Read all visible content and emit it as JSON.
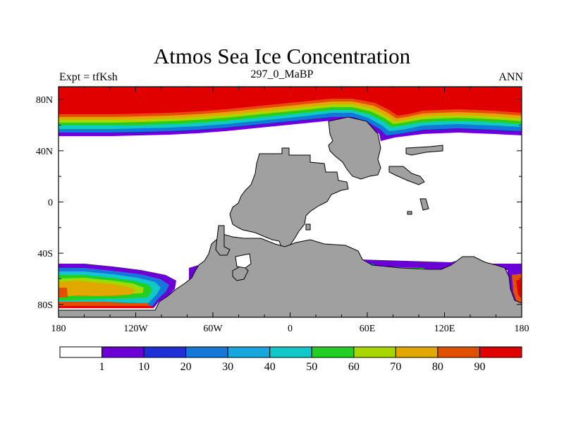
{
  "title": "Atmos Sea Ice Concentration",
  "left_label": "Expt = tfKsh",
  "center_label": "297_0_MaBP",
  "right_label": "ANN",
  "x_ticks": [
    {
      "value": -180,
      "label": "180"
    },
    {
      "value": -120,
      "label": "120W"
    },
    {
      "value": -60,
      "label": "60W"
    },
    {
      "value": 0,
      "label": "0"
    },
    {
      "value": 60,
      "label": "60E"
    },
    {
      "value": 120,
      "label": "120E"
    },
    {
      "value": 180,
      "label": "180"
    }
  ],
  "y_ticks": [
    {
      "value": 80,
      "label": "80N"
    },
    {
      "value": 40,
      "label": "40N"
    },
    {
      "value": 0,
      "label": "0"
    },
    {
      "value": -40,
      "label": "40S"
    },
    {
      "value": -80,
      "label": "80S"
    }
  ],
  "colorbar": {
    "levels": [
      "1",
      "10",
      "20",
      "30",
      "40",
      "50",
      "60",
      "70",
      "80",
      "90"
    ],
    "colors": [
      "#ffffff",
      "#6a00d6",
      "#1f2fd8",
      "#1478da",
      "#16a8dc",
      "#10c8c8",
      "#22cf22",
      "#a8d600",
      "#e0a800",
      "#e05000",
      "#e00000"
    ]
  },
  "colors": {
    "land": "#a0a0a0",
    "ice_max": "#e00000"
  }
}
